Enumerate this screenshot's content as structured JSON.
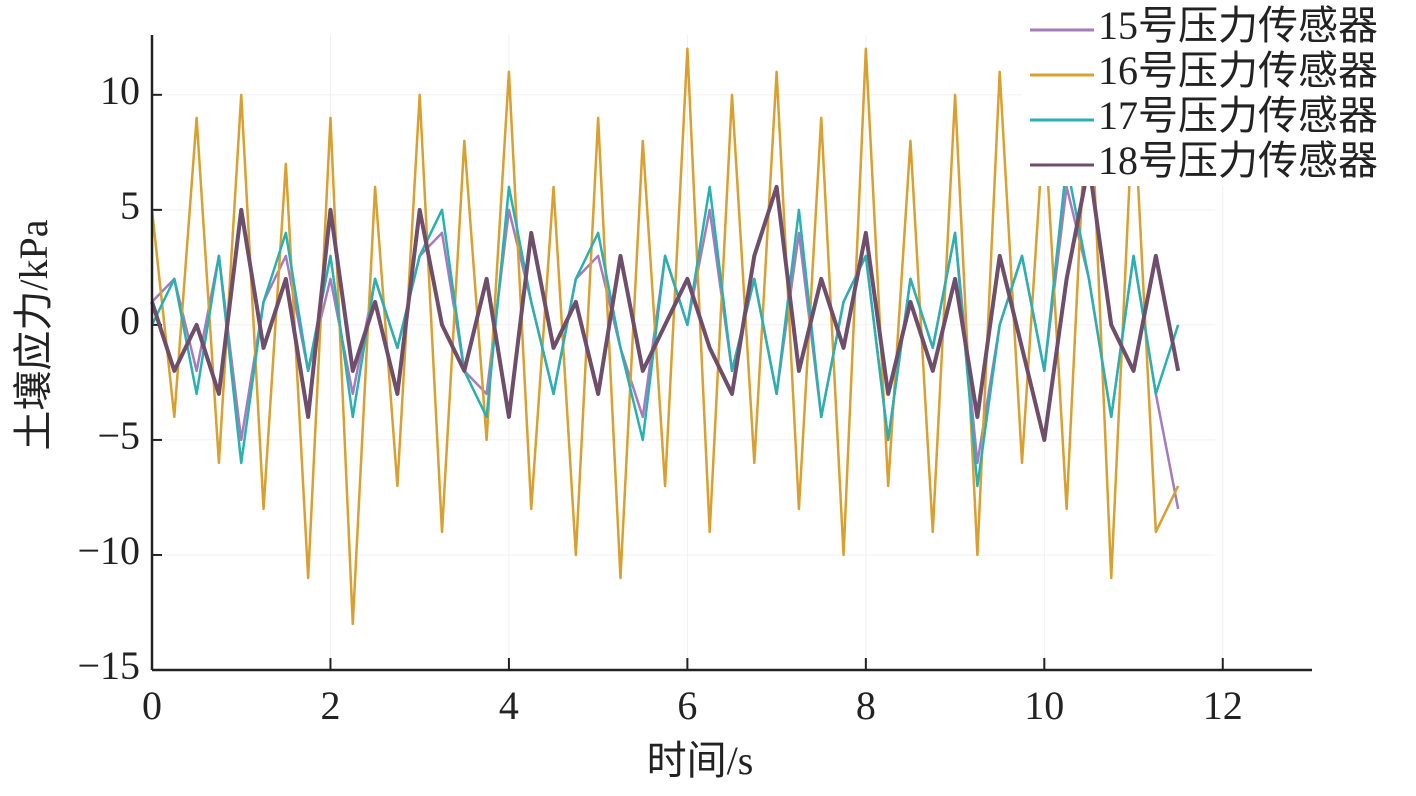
{
  "chart_data": {
    "type": "line",
    "xlabel": "时间/s",
    "ylabel": "土壤应力/kPa",
    "x": [
      0,
      0.25,
      0.5,
      0.75,
      1,
      1.25,
      1.5,
      1.75,
      2,
      2.25,
      2.5,
      2.75,
      3,
      3.25,
      3.5,
      3.75,
      4,
      4.25,
      4.5,
      4.75,
      5,
      5.25,
      5.5,
      5.75,
      6,
      6.25,
      6.5,
      6.75,
      7,
      7.25,
      7.5,
      7.75,
      8,
      8.25,
      8.5,
      8.75,
      9,
      9.25,
      9.5,
      9.75,
      10,
      10.25,
      10.5,
      10.75,
      11,
      11.25,
      11.5
    ],
    "series": [
      {
        "name": "15号压力传感器",
        "color": "#a57bbd",
        "values": [
          1,
          2,
          -2,
          3,
          -5,
          1,
          3,
          -2,
          2,
          -3,
          2,
          -1,
          3,
          4,
          -2,
          -3,
          5,
          1,
          -3,
          2,
          3,
          -1,
          -4,
          3,
          0,
          5,
          -2,
          2,
          -3,
          4,
          -4,
          1,
          3,
          -5,
          2,
          -1,
          4,
          -6,
          0,
          3,
          -2,
          6,
          2,
          -4,
          3,
          -3,
          -8
        ]
      },
      {
        "name": "16号压力传感器",
        "color": "#d9a030",
        "values": [
          5,
          -4,
          9,
          -6,
          10,
          -8,
          7,
          -11,
          9,
          -13,
          6,
          -7,
          10,
          -9,
          8,
          -5,
          11,
          -8,
          6,
          -10,
          9,
          -11,
          8,
          -7,
          12,
          -9,
          10,
          -6,
          11,
          -8,
          9,
          -10,
          12,
          -7,
          8,
          -9,
          10,
          -10,
          11,
          -6,
          9,
          -8,
          12,
          -11,
          10,
          -9,
          -7
        ]
      },
      {
        "name": "17号压力传感器",
        "color": "#2ab0b0",
        "values": [
          0,
          2,
          -3,
          3,
          -6,
          1,
          4,
          -2,
          3,
          -4,
          2,
          -1,
          3,
          5,
          -2,
          -4,
          6,
          1,
          -3,
          2,
          4,
          -1,
          -5,
          3,
          0,
          6,
          -2,
          2,
          -3,
          5,
          -4,
          1,
          3,
          -5,
          2,
          -1,
          4,
          -7,
          0,
          3,
          -2,
          7,
          2,
          -4,
          3,
          -3,
          0
        ]
      },
      {
        "name": "18号压力传感器",
        "color": "#6e4e6a",
        "values": [
          1,
          -2,
          0,
          -3,
          5,
          -1,
          2,
          -4,
          5,
          -2,
          1,
          -3,
          5,
          0,
          -2,
          2,
          -4,
          4,
          -1,
          1,
          -3,
          3,
          -2,
          0,
          2,
          -1,
          -3,
          3,
          6,
          -2,
          2,
          -1,
          4,
          -3,
          1,
          -2,
          2,
          -4,
          3,
          -1,
          -5,
          2,
          7,
          0,
          -2,
          3,
          -2
        ]
      }
    ],
    "xlim": [
      0,
      13
    ],
    "xticks": [
      0,
      2,
      4,
      6,
      8,
      10,
      12
    ],
    "ylim": [
      -15,
      12.6
    ],
    "yticks": [
      {
        "value": -15,
        "label": "−15"
      },
      {
        "value": -10,
        "label": "−10"
      },
      {
        "value": -5,
        "label": "−5"
      },
      0,
      5,
      10
    ],
    "grid": true,
    "legend": "upper right"
  }
}
